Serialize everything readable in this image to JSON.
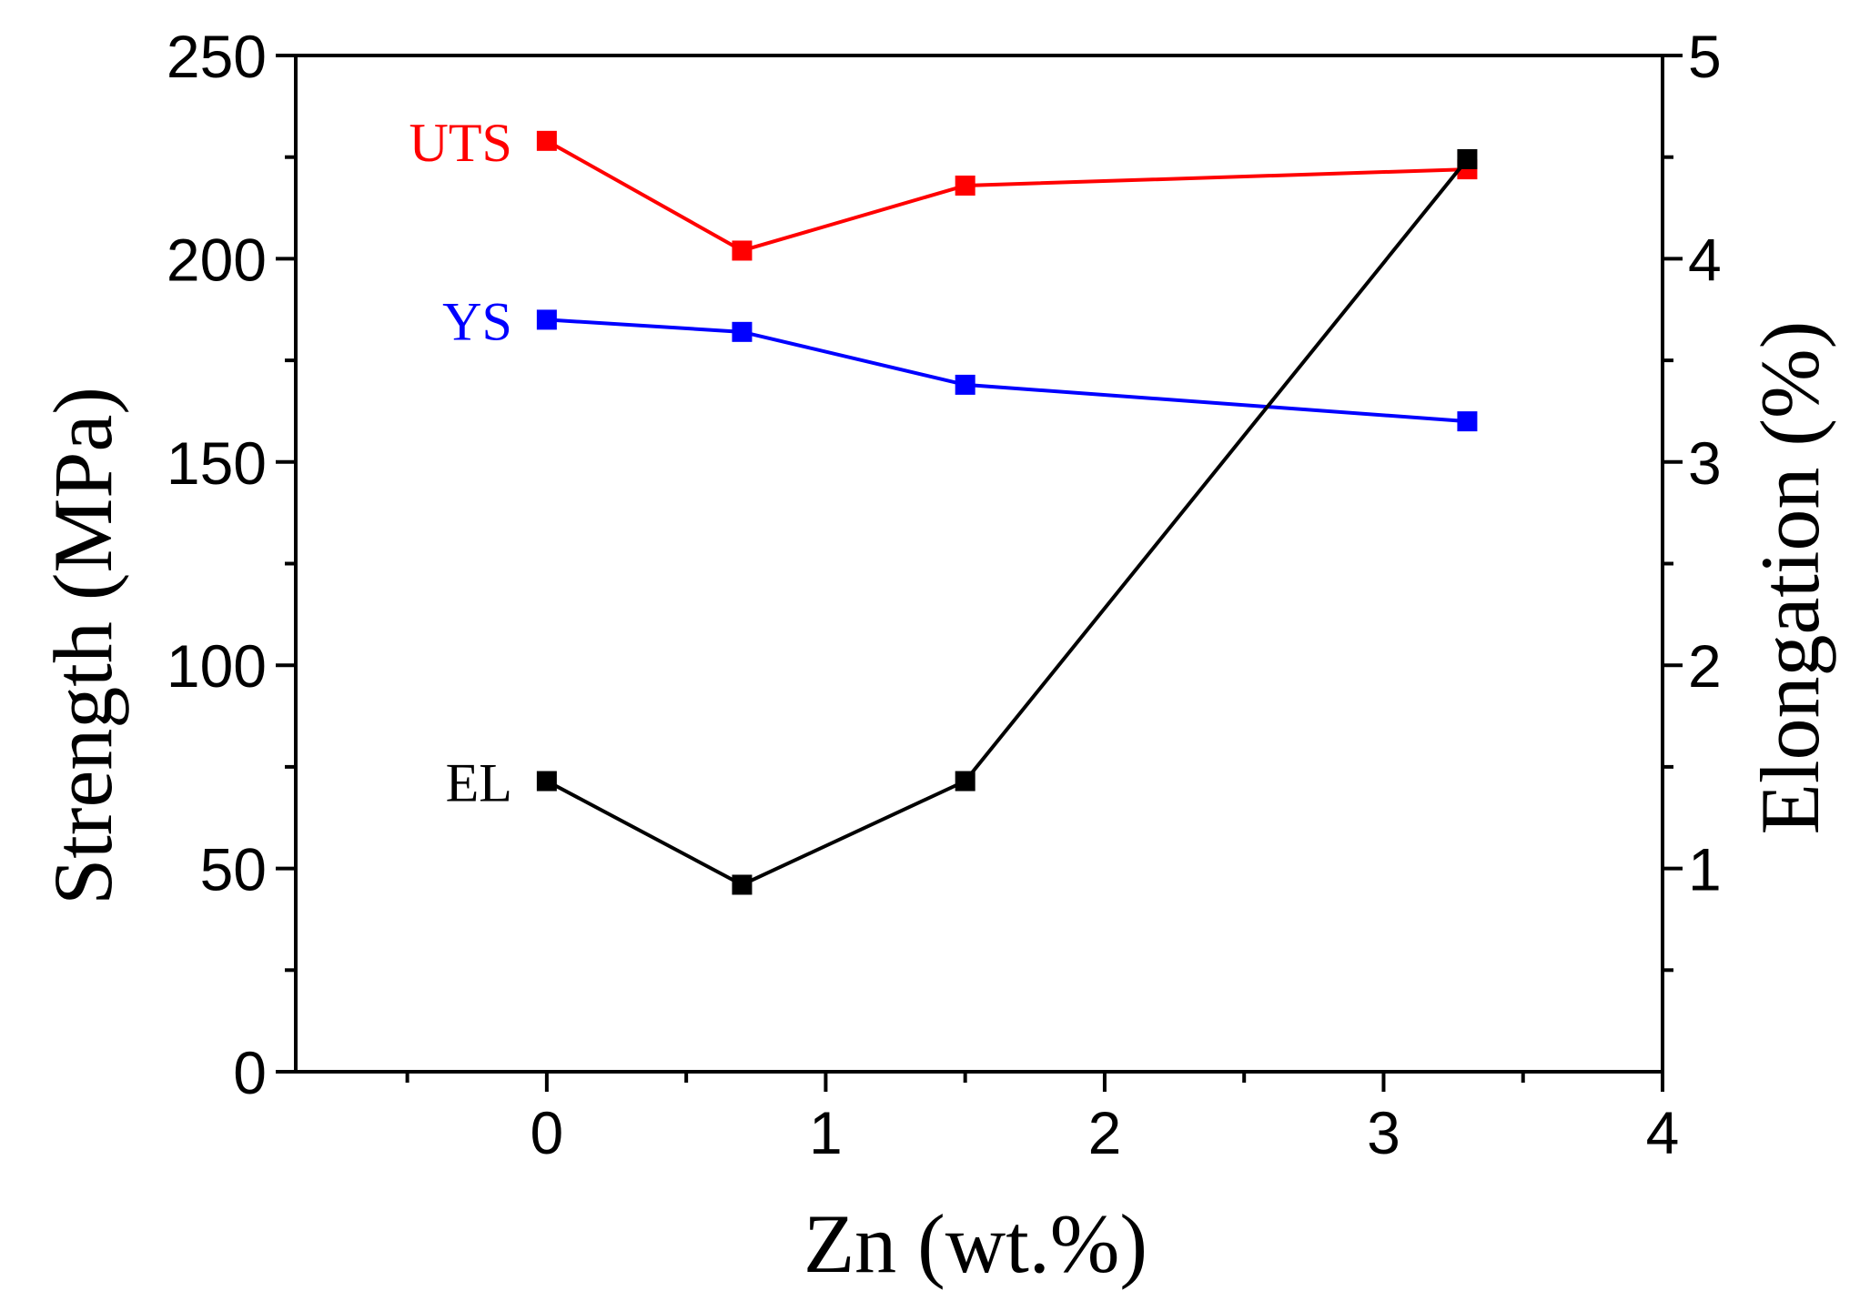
{
  "chart_data": {
    "type": "line",
    "xlabel": "Zn (wt.%)",
    "ylabel": "Strength (MPa)",
    "y2label": "Elongation (%)",
    "xlim": [
      -0.9,
      4
    ],
    "ylim": [
      0,
      250
    ],
    "y2lim": [
      0,
      5
    ],
    "x_ticks": [
      0,
      1,
      2,
      3,
      4
    ],
    "x_tick_labels": [
      "0",
      "1",
      "2",
      "3",
      "4"
    ],
    "y_ticks": [
      0,
      50,
      100,
      150,
      200,
      250
    ],
    "y_tick_labels": [
      "0",
      "50",
      "100",
      "150",
      "200",
      "250"
    ],
    "y2_ticks": [
      1,
      2,
      3,
      4,
      5
    ],
    "y2_tick_labels": [
      "1",
      "2",
      "3",
      "4",
      "5"
    ],
    "x": [
      0,
      0.7,
      1.5,
      3.3
    ],
    "series": [
      {
        "name": "UTS",
        "axis": "left",
        "color": "#ff0000",
        "values": [
          229,
          202,
          218,
          222
        ]
      },
      {
        "name": "YS",
        "axis": "left",
        "color": "#0000ff",
        "values": [
          185,
          182,
          169,
          160
        ]
      },
      {
        "name": "EL",
        "axis": "right",
        "color": "#000000",
        "values": [
          1.43,
          0.92,
          1.43,
          4.49
        ]
      }
    ],
    "grid": false,
    "legend": "inline labels left of first points"
  }
}
